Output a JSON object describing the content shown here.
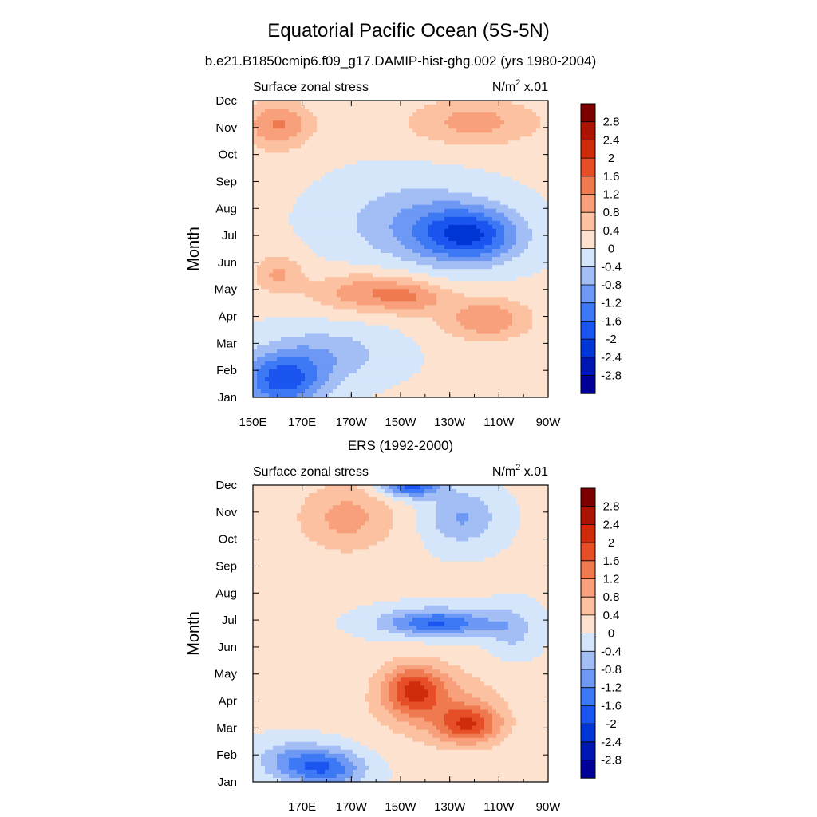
{
  "figure": {
    "title": "Equatorial Pacific Ocean (5S-5N)"
  },
  "chart_data": [
    {
      "type": "heatmap",
      "title": "b.e21.B1850cmip6.f09_g17.DAMIP-hist-ghg.002 (yrs 1980-2004)",
      "left_label": "Surface zonal stress",
      "right_label": "N/m",
      "right_label_sup": "2",
      "right_label_tail": " x.01",
      "ylabel": "Month",
      "x_tick_labels": [
        "150E",
        "170E",
        "170W",
        "150W",
        "130W",
        "110W",
        "90W"
      ],
      "y_tick_labels": [
        "Jan",
        "Feb",
        "Mar",
        "Apr",
        "May",
        "Jun",
        "Jul",
        "Aug",
        "Sep",
        "Oct",
        "Nov",
        "Dec"
      ],
      "xlim": [
        150,
        270
      ],
      "ylim": [
        1,
        12
      ],
      "features": [
        {
          "lon": 160,
          "month": 11.1,
          "slon": 14,
          "smon": 0.9,
          "amp": 1.2
        },
        {
          "lon": 240,
          "month": 11.2,
          "slon": 28,
          "smon": 0.9,
          "amp": 0.9
        },
        {
          "lon": 238,
          "month": 7.0,
          "slon": 20,
          "smon": 1.0,
          "amp": -1.9
        },
        {
          "lon": 215,
          "month": 7.5,
          "slon": 30,
          "smon": 1.5,
          "amp": -0.8
        },
        {
          "lon": 195,
          "month": 4.9,
          "slon": 22,
          "smon": 0.7,
          "amp": 1.0
        },
        {
          "lon": 215,
          "month": 4.7,
          "slon": 15,
          "smon": 0.6,
          "amp": 0.8
        },
        {
          "lon": 245,
          "month": 3.9,
          "slon": 18,
          "smon": 0.8,
          "amp": 1.1
        },
        {
          "lon": 160,
          "month": 5.6,
          "slon": 10,
          "smon": 0.7,
          "amp": 0.8
        },
        {
          "lon": 162,
          "month": 1.6,
          "slon": 17,
          "smon": 1.0,
          "amp": -1.8
        },
        {
          "lon": 180,
          "month": 2.6,
          "slon": 25,
          "smon": 1.0,
          "amp": -0.7
        }
      ]
    },
    {
      "type": "heatmap",
      "title": "ERS (1992-2000)",
      "left_label": "Surface zonal stress",
      "right_label": "N/m",
      "right_label_sup": "2",
      "right_label_tail": " x.01",
      "ylabel": "Month",
      "x_tick_labels": [
        "170E",
        "170W",
        "150W",
        "130W",
        "110W",
        "90W"
      ],
      "y_tick_labels": [
        "Jan",
        "Feb",
        "Mar",
        "Apr",
        "May",
        "Jun",
        "Jul",
        "Aug",
        "Sep",
        "Oct",
        "Nov",
        "Dec"
      ],
      "xlim": [
        150,
        270
      ],
      "ylim": [
        1,
        12
      ],
      "features": [
        {
          "lon": 214,
          "month": 12.0,
          "slon": 12,
          "smon": 0.45,
          "amp": -1.9
        },
        {
          "lon": 235,
          "month": 10.8,
          "slon": 14,
          "smon": 1.0,
          "amp": -0.9
        },
        {
          "lon": 225,
          "month": 6.9,
          "slon": 22,
          "smon": 0.5,
          "amp": -1.7
        },
        {
          "lon": 255,
          "month": 6.6,
          "slon": 10,
          "smon": 0.9,
          "amp": -0.6
        },
        {
          "lon": 215,
          "month": 4.4,
          "slon": 12,
          "smon": 0.9,
          "amp": 1.6
        },
        {
          "lon": 238,
          "month": 3.1,
          "slon": 13,
          "smon": 0.7,
          "amp": 1.6
        },
        {
          "lon": 225,
          "month": 3.9,
          "slon": 26,
          "smon": 1.4,
          "amp": 0.8
        },
        {
          "lon": 188,
          "month": 10.8,
          "slon": 20,
          "smon": 1.3,
          "amp": 0.9
        },
        {
          "lon": 180,
          "month": 1.5,
          "slon": 15,
          "smon": 0.7,
          "amp": -1.5
        },
        {
          "lon": 165,
          "month": 1.8,
          "slon": 14,
          "smon": 0.7,
          "amp": -0.8
        }
      ]
    }
  ],
  "colorbar": {
    "levels": [
      -2.8,
      -2.4,
      -2,
      -1.6,
      -1.2,
      -0.8,
      -0.4,
      0,
      0.4,
      0.8,
      1.2,
      1.6,
      2,
      2.4,
      2.8
    ],
    "tick_labels": [
      "-2.8",
      "-2.4",
      "-2",
      "-1.6",
      "-1.2",
      "-0.8",
      "-0.4",
      "0",
      "0.4",
      "0.8",
      "1.2",
      "1.6",
      "2",
      "2.4",
      "2.8"
    ],
    "colors": [
      "#000096",
      "#0016b0",
      "#0035d6",
      "#1a55f0",
      "#3d78f5",
      "#6d98f4",
      "#a3bdf5",
      "#d5e5fa",
      "#fde3cf",
      "#fbc1a0",
      "#f7a07b",
      "#f07a4f",
      "#e54e26",
      "#cf2c0c",
      "#ab1403",
      "#7d0000"
    ]
  }
}
